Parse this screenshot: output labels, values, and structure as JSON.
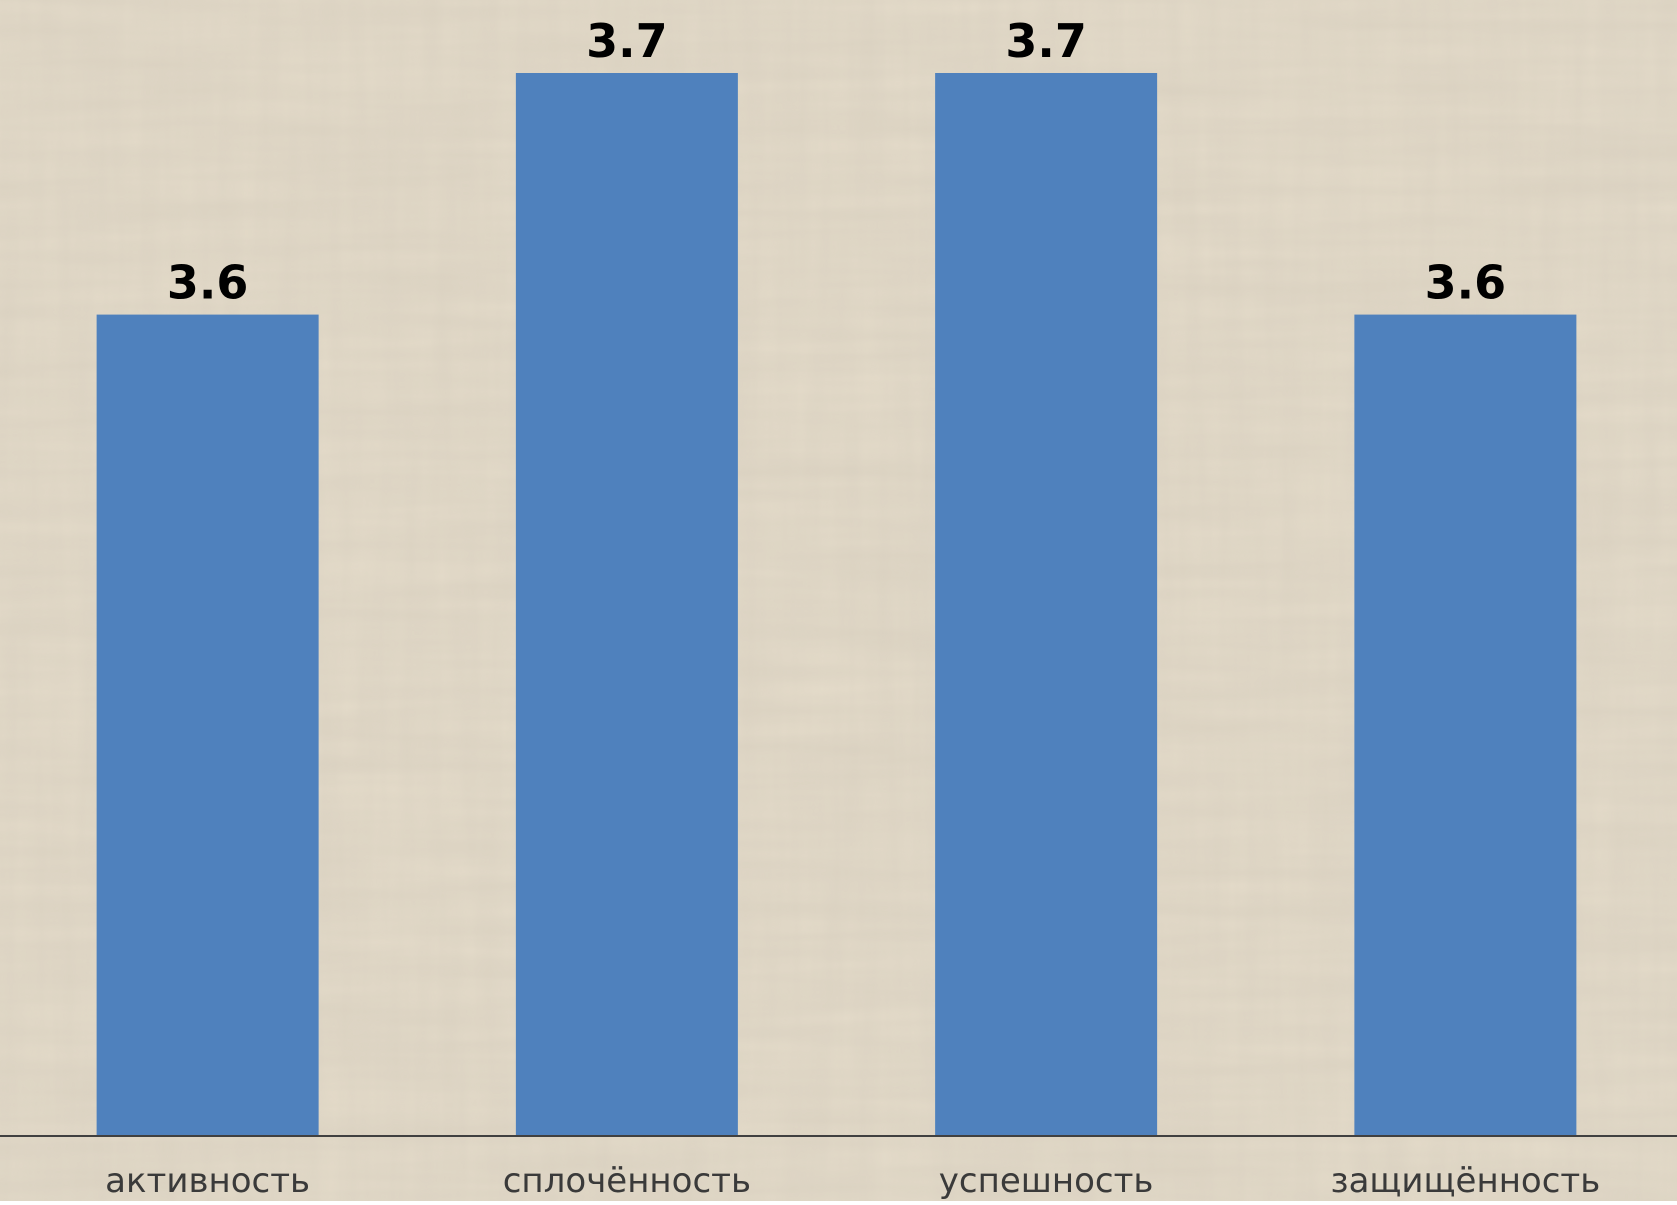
{
  "chart_data": {
    "type": "bar",
    "categories": [
      "активность",
      "сплочённость",
      "успешность",
      "защищённость"
    ],
    "values": [
      3.6,
      3.7,
      3.7,
      3.6
    ],
    "data_labels": [
      "3.6",
      "3.7",
      "3.7",
      "3.6"
    ],
    "title": "",
    "xlabel": "",
    "ylabel": "",
    "ylim": [
      3.26,
      3.7
    ],
    "grid": false,
    "legend": "none",
    "bar_color": "#4F81BD",
    "background_color": "#E6DDCB"
  }
}
